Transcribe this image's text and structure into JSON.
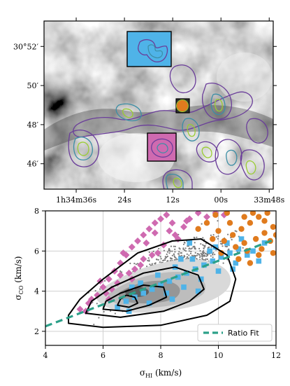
{
  "chart_data": [
    {
      "type": "map",
      "ra_ticks": [
        {
          "label": "1h34m36s",
          "ra_offset_s": -48
        },
        {
          "label": "24s",
          "ra_offset_s": -36
        },
        {
          "label": "12s",
          "ra_offset_s": -24
        },
        {
          "label": "00s",
          "ra_offset_s": -12
        },
        {
          "label": "33m48s",
          "ra_offset_s": 0
        }
      ],
      "dec_ticks": [
        {
          "label": "30°52′",
          "dec_arcmin": 52
        },
        {
          "label": "50′",
          "dec_arcmin": 50
        },
        {
          "label": "48′",
          "dec_arcmin": 48
        },
        {
          "label": "46′",
          "dec_arcmin": 46
        }
      ],
      "background": "greyscale HI map",
      "contour_colors": [
        "#6a3d9a",
        "#3b8ea5",
        "#9acd32"
      ],
      "regions": [
        {
          "color": "#4fb3e8",
          "label": ""
        },
        {
          "color": "#e07b1e",
          "label": ""
        },
        {
          "color": "#cf6ab0",
          "label": ""
        }
      ]
    },
    {
      "type": "scatter",
      "xlabel": "σ_HI (km/s)",
      "ylabel": "σ_CO (km/s)",
      "xlim": [
        4,
        12
      ],
      "ylim": [
        1.3,
        8
      ],
      "xticks": [
        4,
        6,
        8,
        10,
        12
      ],
      "yticks": [
        2,
        4,
        6,
        8
      ],
      "grid": true,
      "legend": {
        "placement": "bottom-right",
        "entries": [
          {
            "label": "Ratio Fit",
            "color": "#2ca089",
            "style": "dashed"
          }
        ]
      },
      "ratio_fit": {
        "x": [
          4,
          12
        ],
        "y": [
          2.25,
          6.6
        ]
      },
      "series": [
        {
          "color": "#cf6ab0",
          "marker": "diamond",
          "points": [
            [
              5.2,
              3.1
            ],
            [
              5.5,
              3.4
            ],
            [
              5.8,
              3.8
            ],
            [
              6.0,
              4.2
            ],
            [
              6.2,
              4.6
            ],
            [
              6.4,
              5.0
            ],
            [
              6.6,
              5.4
            ],
            [
              6.8,
              5.8
            ],
            [
              7.0,
              6.2
            ],
            [
              7.2,
              6.5
            ],
            [
              7.4,
              6.8
            ],
            [
              7.6,
              7.1
            ],
            [
              7.8,
              7.4
            ],
            [
              8.0,
              7.6
            ],
            [
              8.2,
              7.8
            ],
            [
              6.1,
              3.9
            ],
            [
              6.5,
              4.4
            ],
            [
              6.9,
              4.9
            ],
            [
              7.3,
              5.3
            ],
            [
              7.7,
              5.8
            ],
            [
              8.1,
              6.3
            ],
            [
              8.5,
              6.8
            ],
            [
              8.8,
              7.2
            ],
            [
              9.0,
              7.6
            ],
            [
              9.3,
              7.9
            ],
            [
              5.6,
              3.6
            ],
            [
              6.3,
              4.1
            ],
            [
              7.1,
              5.1
            ],
            [
              7.9,
              5.9
            ],
            [
              8.6,
              6.6
            ],
            [
              9.6,
              7.7
            ],
            [
              6.7,
              5.9
            ],
            [
              7.5,
              6.4
            ],
            [
              8.3,
              7.0
            ],
            [
              5.9,
              4.5
            ],
            [
              6.6,
              4.8
            ],
            [
              7.4,
              5.6
            ],
            [
              8.9,
              7.5
            ],
            [
              9.9,
              7.9
            ],
            [
              10.2,
              7.8
            ],
            [
              7.0,
              4.6
            ],
            [
              6.2,
              3.6
            ],
            [
              5.4,
              3.0
            ],
            [
              8.4,
              7.4
            ],
            [
              7.8,
              6.9
            ]
          ]
        },
        {
          "color": "#4fb3e8",
          "marker": "square",
          "points": [
            [
              6.8,
              3.5
            ],
            [
              7.1,
              3.7
            ],
            [
              7.4,
              3.9
            ],
            [
              7.7,
              4.1
            ],
            [
              8.0,
              4.3
            ],
            [
              8.3,
              4.5
            ],
            [
              8.6,
              4.7
            ],
            [
              8.9,
              4.9
            ],
            [
              9.2,
              5.1
            ],
            [
              9.5,
              5.3
            ],
            [
              9.8,
              5.5
            ],
            [
              10.1,
              5.7
            ],
            [
              10.4,
              5.9
            ],
            [
              10.7,
              6.1
            ],
            [
              7.3,
              4.4
            ],
            [
              7.9,
              4.8
            ],
            [
              8.5,
              5.2
            ],
            [
              9.1,
              5.6
            ],
            [
              9.7,
              6.0
            ],
            [
              10.3,
              6.4
            ],
            [
              8.2,
              3.9
            ],
            [
              8.8,
              4.2
            ],
            [
              9.4,
              4.6
            ],
            [
              10.0,
              5.0
            ],
            [
              10.6,
              5.4
            ],
            [
              11.0,
              5.8
            ],
            [
              7.6,
              3.4
            ],
            [
              8.4,
              3.6
            ],
            [
              6.5,
              3.2
            ],
            [
              9.9,
              6.2
            ],
            [
              10.8,
              6.6
            ],
            [
              11.2,
              6.0
            ],
            [
              7.0,
              4.2
            ],
            [
              8.7,
              5.6
            ],
            [
              9.3,
              4.0
            ],
            [
              10.5,
              5.1
            ],
            [
              11.4,
              5.5
            ],
            [
              6.9,
              3.0
            ],
            [
              9.0,
              6.4
            ],
            [
              11.6,
              6.4
            ]
          ]
        },
        {
          "color": "#e07b1e",
          "marker": "circle",
          "points": [
            [
              10.2,
              6.5
            ],
            [
              10.5,
              6.8
            ],
            [
              10.8,
              7.1
            ],
            [
              11.1,
              7.4
            ],
            [
              11.4,
              7.7
            ],
            [
              11.7,
              7.9
            ],
            [
              10.0,
              7.0
            ],
            [
              10.4,
              7.4
            ],
            [
              10.9,
              7.7
            ],
            [
              11.3,
              6.6
            ],
            [
              11.6,
              6.9
            ],
            [
              11.9,
              7.2
            ],
            [
              10.6,
              6.2
            ],
            [
              11.0,
              6.0
            ],
            [
              11.5,
              6.1
            ],
            [
              11.8,
              6.5
            ],
            [
              9.6,
              7.4
            ],
            [
              9.9,
              7.8
            ],
            [
              10.3,
              7.9
            ],
            [
              11.2,
              7.9
            ],
            [
              12.0,
              6.8
            ],
            [
              11.4,
              5.8
            ],
            [
              10.1,
              5.9
            ],
            [
              10.7,
              5.6
            ],
            [
              11.9,
              5.9
            ],
            [
              9.3,
              7.1
            ],
            [
              9.8,
              6.6
            ],
            [
              11.6,
              7.5
            ],
            [
              10.9,
              6.4
            ],
            [
              11.1,
              5.4
            ]
          ]
        },
        {
          "color": "#808080",
          "marker": "dot",
          "points": []
        }
      ],
      "density_contours": [
        {
          "level": "outer",
          "path": [
            [
              4.8,
              2.4
            ],
            [
              6.0,
              2.2
            ],
            [
              8.0,
              2.3
            ],
            [
              9.6,
              2.8
            ],
            [
              10.4,
              3.5
            ],
            [
              10.6,
              4.6
            ],
            [
              10.3,
              5.8
            ],
            [
              9.4,
              6.6
            ],
            [
              8.4,
              6.5
            ],
            [
              7.2,
              5.9
            ],
            [
              6.0,
              4.6
            ],
            [
              5.2,
              3.6
            ],
            [
              4.8,
              2.8
            ]
          ]
        },
        {
          "level": "middle",
          "path": [
            [
              5.4,
              2.9
            ],
            [
              6.6,
              2.7
            ],
            [
              8.1,
              3.0
            ],
            [
              9.0,
              3.5
            ],
            [
              9.5,
              4.1
            ],
            [
              9.3,
              4.8
            ],
            [
              8.5,
              5.2
            ],
            [
              7.4,
              4.9
            ],
            [
              6.3,
              4.2
            ],
            [
              5.6,
              3.5
            ]
          ]
        },
        {
          "level": "inner",
          "path": [
            [
              6.0,
              3.1
            ],
            [
              6.8,
              3.0
            ],
            [
              7.6,
              3.3
            ],
            [
              8.2,
              3.7
            ],
            [
              8.1,
              4.2
            ],
            [
              7.4,
              4.3
            ],
            [
              6.6,
              3.9
            ],
            [
              6.1,
              3.5
            ]
          ]
        },
        {
          "level": "core",
          "path": [
            [
              6.5,
              3.3
            ],
            [
              6.9,
              3.2
            ],
            [
              7.2,
              3.4
            ],
            [
              7.1,
              3.7
            ],
            [
              6.8,
              3.8
            ],
            [
              6.6,
              3.6
            ]
          ]
        }
      ]
    }
  ]
}
